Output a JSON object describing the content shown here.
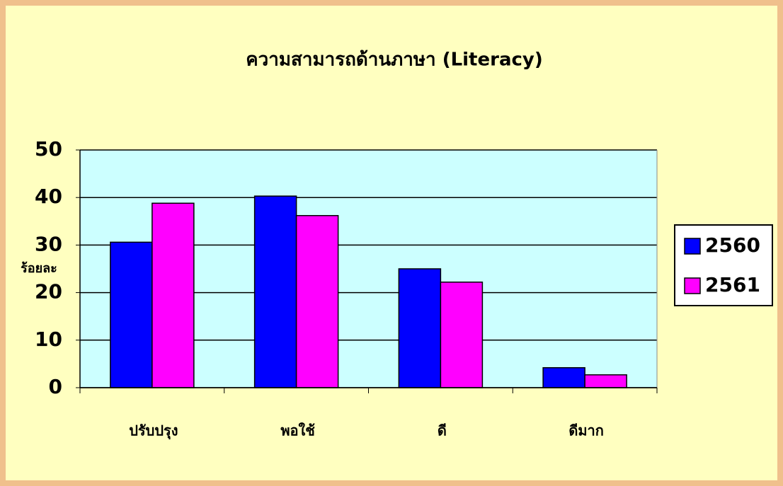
{
  "chart_data": {
    "type": "bar",
    "title": "ความสามารถด้านภาษา (Literacy)",
    "y_label": "ร้อยละ",
    "categories": [
      "ปรับปรุง",
      "พอใช้",
      "ดี",
      "ดีมาก"
    ],
    "series": [
      {
        "name": "2560",
        "color": "#0000ff",
        "values": [
          30.6,
          40.3,
          25.0,
          4.2
        ]
      },
      {
        "name": "2561",
        "color": "#ff00ff",
        "values": [
          38.8,
          36.2,
          22.2,
          2.7
        ]
      }
    ],
    "ylim": [
      0,
      50
    ],
    "yticks": [
      0,
      10,
      20,
      30,
      40,
      50
    ],
    "grid": true,
    "legend": "right"
  }
}
